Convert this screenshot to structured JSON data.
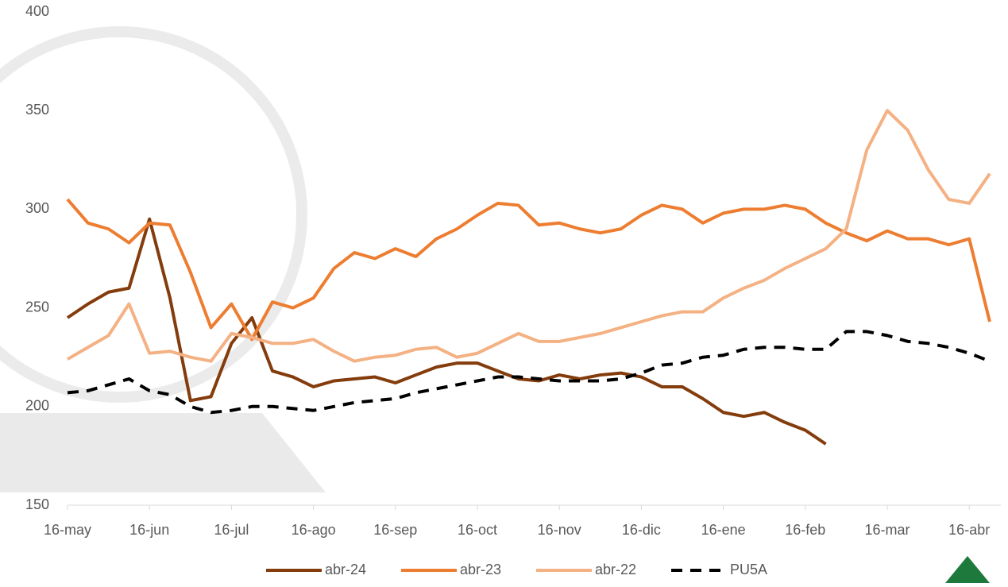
{
  "chart_data": {
    "type": "line",
    "categories": [
      "16-may",
      null,
      null,
      null,
      "16-jun",
      null,
      null,
      null,
      "16-jul",
      null,
      null,
      null,
      "16-ago",
      null,
      null,
      null,
      "16-sep",
      null,
      null,
      null,
      "16-oct",
      null,
      null,
      null,
      "16-nov",
      null,
      null,
      null,
      "16-dic",
      null,
      null,
      null,
      "16-ene",
      null,
      null,
      null,
      "16-feb",
      null,
      null,
      null,
      "16-mar",
      null,
      null,
      null,
      "16-abr",
      null
    ],
    "series": [
      {
        "name": "abr-24",
        "color": "#843c0c",
        "line_style": "solid",
        "values": [
          245,
          252,
          258,
          260,
          295,
          255,
          203,
          205,
          232,
          245,
          218,
          215,
          210,
          213,
          214,
          215,
          212,
          216,
          220,
          222,
          222,
          218,
          214,
          213,
          216,
          214,
          216,
          217,
          215,
          210,
          210,
          204,
          197,
          195,
          197,
          192,
          188,
          181,
          null,
          null,
          null,
          null,
          null,
          null,
          null,
          null
        ]
      },
      {
        "name": "abr-23",
        "color": "#ed7d31",
        "line_style": "solid",
        "values": [
          305,
          293,
          290,
          283,
          293,
          292,
          268,
          240,
          252,
          234,
          253,
          250,
          255,
          270,
          278,
          275,
          280,
          276,
          285,
          290,
          297,
          303,
          302,
          292,
          293,
          290,
          288,
          290,
          297,
          302,
          300,
          293,
          298,
          300,
          300,
          302,
          300,
          293,
          288,
          284,
          289,
          285,
          285,
          282,
          285,
          243
        ]
      },
      {
        "name": "abr-22",
        "color": "#f4b183",
        "line_style": "solid",
        "values": [
          224,
          230,
          236,
          252,
          227,
          228,
          225,
          223,
          237,
          235,
          232,
          232,
          234,
          228,
          223,
          225,
          226,
          229,
          230,
          225,
          227,
          232,
          237,
          233,
          233,
          235,
          237,
          240,
          243,
          246,
          248,
          248,
          255,
          260,
          264,
          270,
          275,
          280,
          290,
          330,
          350,
          340,
          320,
          305,
          303,
          318
        ]
      },
      {
        "name": "PU5A",
        "color": "#000000",
        "line_style": "dashed",
        "values": [
          207,
          208,
          211,
          214,
          208,
          206,
          200,
          197,
          198,
          200,
          200,
          199,
          198,
          200,
          202,
          203,
          204,
          207,
          209,
          211,
          213,
          215,
          215,
          214,
          213,
          213,
          213,
          214,
          217,
          221,
          222,
          225,
          226,
          229,
          230,
          230,
          229,
          229,
          238,
          238,
          236,
          233,
          232,
          230,
          227,
          223
        ]
      }
    ],
    "ylim": [
      150,
      400
    ],
    "yticks": [
      150,
      200,
      250,
      300,
      350,
      400
    ],
    "grid": false,
    "legend": "bottom"
  }
}
